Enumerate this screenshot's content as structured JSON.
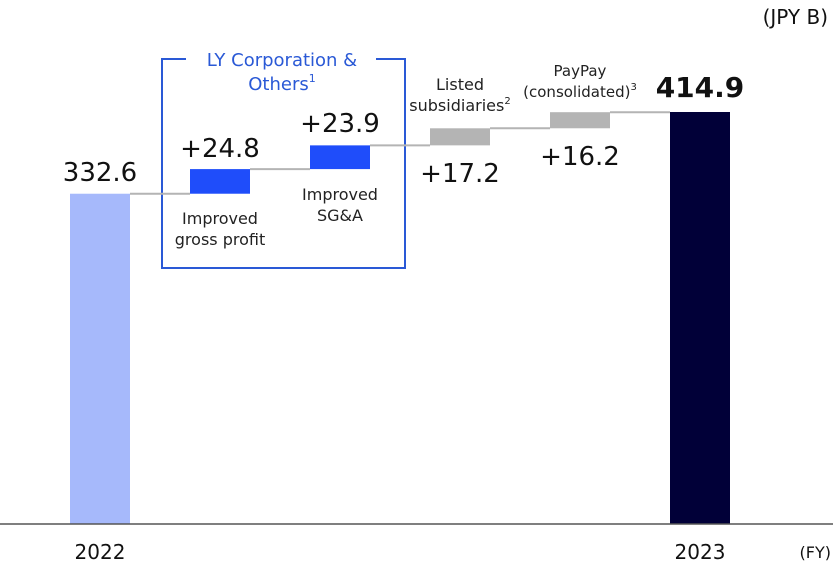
{
  "unit_label": "(JPY B)",
  "fy_label": "(FY)",
  "group_box": {
    "title_line1": "LY Corporation &",
    "title_line2": "Others",
    "title_superscript": "1",
    "color": "#2a59d6"
  },
  "chart_data": {
    "type": "waterfall",
    "unit": "JPY B",
    "ylim": [
      0,
      414.9
    ],
    "grid": false,
    "steps": [
      {
        "id": "fy2022",
        "kind": "total",
        "category": "2022",
        "value": 332.6,
        "value_label": "332.6",
        "color": "#a6b9fb"
      },
      {
        "id": "gross-profit",
        "kind": "delta",
        "value": 24.8,
        "value_label": "+24.8",
        "label_lines": [
          "Improved",
          "gross profit"
        ],
        "superscript": "",
        "color": "#1f4dfa"
      },
      {
        "id": "sga",
        "kind": "delta",
        "value": 23.9,
        "value_label": "+23.9",
        "label_lines": [
          "Improved",
          "SG&A"
        ],
        "superscript": "",
        "color": "#1f4dfa"
      },
      {
        "id": "listed-subsidiaries",
        "kind": "delta",
        "value": 17.2,
        "value_label": "+17.2",
        "label_lines": [
          "Listed",
          "subsidiaries"
        ],
        "superscript": "2",
        "color": "#b4b4b4"
      },
      {
        "id": "paypay",
        "kind": "delta",
        "value": 16.2,
        "value_label": "+16.2",
        "label_lines": [
          "PayPay",
          "(consolidated)"
        ],
        "superscript": "3",
        "color": "#b4b4b4"
      },
      {
        "id": "fy2023",
        "kind": "total",
        "category": "2023",
        "value": 414.9,
        "value_label": "414.9",
        "color": "#010038"
      }
    ]
  }
}
